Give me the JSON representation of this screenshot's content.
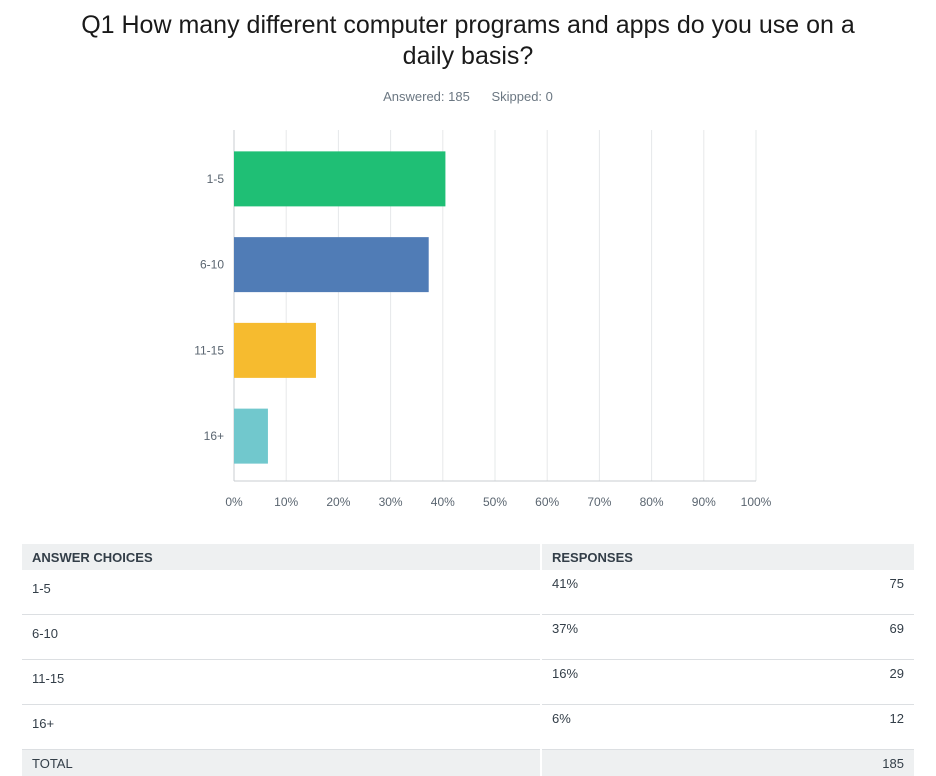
{
  "header": {
    "title_line1": "Q1 How many different computer programs and apps do you use on a",
    "title_line2": "daily basis?",
    "answered": "Answered: 185",
    "skipped": "Skipped: 0"
  },
  "chart_data": {
    "type": "bar",
    "orientation": "horizontal",
    "categories": [
      "1-5",
      "6-10",
      "11-15",
      "16+"
    ],
    "values": [
      40.5,
      37.3,
      15.7,
      6.5
    ],
    "colors": [
      "#1fbf75",
      "#507cb6",
      "#f6bb2f",
      "#71c8cd"
    ],
    "xlim": [
      0,
      100
    ],
    "xticks": [
      "0%",
      "10%",
      "20%",
      "30%",
      "40%",
      "50%",
      "60%",
      "70%",
      "80%",
      "90%",
      "100%"
    ],
    "grid": true
  },
  "table": {
    "headers": [
      "ANSWER CHOICES",
      "RESPONSES"
    ],
    "rows": [
      {
        "choice": "1-5",
        "percent": "41%",
        "count": "75"
      },
      {
        "choice": "6-10",
        "percent": "37%",
        "count": "69"
      },
      {
        "choice": "11-15",
        "percent": "16%",
        "count": "29"
      },
      {
        "choice": "16+",
        "percent": "6%",
        "count": "12"
      }
    ],
    "total_label": "TOTAL",
    "total_count": "185"
  }
}
